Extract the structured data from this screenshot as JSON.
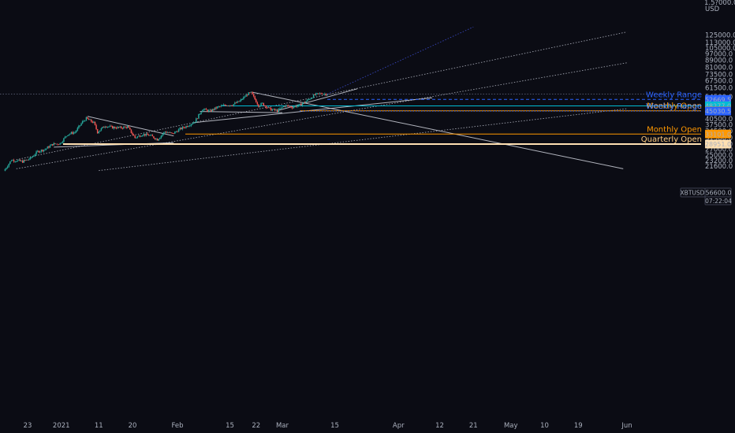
{
  "chart_data": {
    "type": "candlestick",
    "symbol": "XBTUSD",
    "currency": "USD",
    "last_price": "56600.0",
    "countdown": "07:22:04",
    "y_axis": {
      "scale": "log",
      "ylim": [
        20300,
        139000
      ],
      "ticks": [
        "125000.0",
        "113000.0",
        "105000.0",
        "97000.0",
        "89000.0",
        "81000.0",
        "73500.0",
        "67500.0",
        "61500.0",
        "54500.0",
        "40500.0",
        "37500.0",
        "34500.0",
        "31500.0",
        "29000.0",
        "27000.0",
        "25000.0",
        "23200.0",
        "21600.0"
      ],
      "top_label": "1.5?000.0"
    },
    "x_axis": {
      "ticks": [
        {
          "label": "23",
          "date": "2020-12-23"
        },
        {
          "label": "2021",
          "date": "2021-01-01"
        },
        {
          "label": "11",
          "date": "2021-01-11"
        },
        {
          "label": "20",
          "date": "2021-01-20"
        },
        {
          "label": "Feb",
          "date": "2021-02-01"
        },
        {
          "label": "15",
          "date": "2021-02-15"
        },
        {
          "label": "22",
          "date": "2021-02-22"
        },
        {
          "label": "Mar",
          "date": "2021-03-01"
        },
        {
          "label": "15",
          "date": "2021-03-15"
        },
        {
          "label": "Apr",
          "date": "2021-04-01"
        },
        {
          "label": "12",
          "date": "2021-04-12"
        },
        {
          "label": "21",
          "date": "2021-04-21"
        },
        {
          "label": "May",
          "date": "2021-05-01"
        },
        {
          "label": "10",
          "date": "2021-05-10"
        },
        {
          "label": "19",
          "date": "2021-05-19"
        },
        {
          "label": "Jun",
          "date": "2021-06-01"
        }
      ]
    },
    "price_series": [
      [
        "2020-12-17",
        20200
      ],
      [
        "2020-12-19",
        23400
      ],
      [
        "2020-12-22",
        22900
      ],
      [
        "2020-12-24",
        23800
      ],
      [
        "2020-12-26",
        26200
      ],
      [
        "2020-12-28",
        27000
      ],
      [
        "2020-12-30",
        28900
      ],
      [
        "2021-01-01",
        29200
      ],
      [
        "2021-01-03",
        33000
      ],
      [
        "2021-01-05",
        34000
      ],
      [
        "2021-01-07",
        39000
      ],
      [
        "2021-01-08",
        40800
      ],
      [
        "2021-01-10",
        38500
      ],
      [
        "2021-01-11",
        34000
      ],
      [
        "2021-01-13",
        37000
      ],
      [
        "2021-01-15",
        36200
      ],
      [
        "2021-01-17",
        36000
      ],
      [
        "2021-01-19",
        36500
      ],
      [
        "2021-01-21",
        31500
      ],
      [
        "2021-01-23",
        33000
      ],
      [
        "2021-01-25",
        32500
      ],
      [
        "2021-01-27",
        30800
      ],
      [
        "2021-01-29",
        34200
      ],
      [
        "2021-01-31",
        33200
      ],
      [
        "2021-02-02",
        35400
      ],
      [
        "2021-02-04",
        37000
      ],
      [
        "2021-02-06",
        39200
      ],
      [
        "2021-02-08",
        46200
      ],
      [
        "2021-02-10",
        45000
      ],
      [
        "2021-02-12",
        47400
      ],
      [
        "2021-02-14",
        48800
      ],
      [
        "2021-02-16",
        49000
      ],
      [
        "2021-02-18",
        51500
      ],
      [
        "2021-02-20",
        56500
      ],
      [
        "2021-02-21",
        57500
      ],
      [
        "2021-02-23",
        48500
      ],
      [
        "2021-02-24",
        49800
      ],
      [
        "2021-02-26",
        46200
      ],
      [
        "2021-02-28",
        45200
      ],
      [
        "2021-03-02",
        48500
      ],
      [
        "2021-03-04",
        47500
      ],
      [
        "2021-03-06",
        48800
      ],
      [
        "2021-03-08",
        52000
      ],
      [
        "2021-03-10",
        56000
      ],
      [
        "2021-03-12",
        57200
      ],
      [
        "2021-03-13",
        56600
      ]
    ],
    "horizontal_levels": [
      {
        "label": "Weekly Range",
        "price": 52669.5,
        "price_label": "52669.5",
        "style": "dashed",
        "color": "#2962ff",
        "label_color": "#2962ff"
      },
      {
        "label": "",
        "price": 48277.0,
        "price_label": "48277.0",
        "style": "solid",
        "color": "#00bcd4",
        "label_color": "#00bcd4"
      },
      {
        "label": "Monthly Open",
        "price": 45211.0,
        "price_label": "45211.0",
        "style": "solid",
        "color": "#ff9800",
        "label_color": "#ff9800"
      },
      {
        "label": "Weekly Range",
        "price": 45030.5,
        "price_label": "45030.5",
        "style": "dotted",
        "color": "#2962ff",
        "label_color": "#5b8cff"
      },
      {
        "label": "Monthly Open",
        "price": 33101.0,
        "price_label": "33101.0",
        "style": "solid",
        "color": "#ff9800",
        "label_color": "#ff9800"
      },
      {
        "label": "Quarterly Open",
        "price": 28951.0,
        "price_label": "28951.0",
        "style": "solid",
        "color": "#ffe0b2",
        "label_color": "#ffcc80"
      }
    ],
    "trendlines": [
      {
        "name": "upper-channel",
        "style": "dotted",
        "color": "#b8bcc8",
        "points": [
          [
            "2020-12-20",
            23500
          ],
          [
            "2021-06-01",
            130000
          ]
        ]
      },
      {
        "name": "middle-channel",
        "style": "dotted",
        "color": "#b8bcc8",
        "points": [
          [
            "2020-12-20",
            20800
          ],
          [
            "2021-06-01",
            86000
          ]
        ]
      },
      {
        "name": "lower-channel",
        "style": "dotted",
        "color": "#b8bcc8",
        "points": [
          [
            "2021-01-11",
            20300
          ],
          [
            "2021-06-01",
            46500
          ]
        ]
      },
      {
        "name": "steep-blue",
        "style": "dotted",
        "color": "#3d4fd6",
        "points": [
          [
            "2021-03-13",
            56600
          ],
          [
            "2021-04-21",
            139000
          ]
        ]
      },
      {
        "name": "january-downtrend",
        "style": "solid",
        "color": "#d0d3dc",
        "points": [
          [
            "2021-01-08",
            42000
          ],
          [
            "2021-01-31",
            32300
          ]
        ]
      },
      {
        "name": "january-base",
        "style": "solid",
        "color": "#d0d3dc",
        "points": [
          [
            "2020-12-30",
            27800
          ],
          [
            "2021-01-31",
            29500
          ]
        ]
      },
      {
        "name": "feb-uptrend",
        "style": "solid",
        "color": "#d0d3dc",
        "points": [
          [
            "2021-02-05",
            38500
          ],
          [
            "2021-04-10",
            53800
          ]
        ]
      },
      {
        "name": "march-breakout",
        "style": "solid",
        "color": "#d0d3dc",
        "points": [
          [
            "2021-02-28",
            45500
          ],
          [
            "2021-03-21",
            60700
          ]
        ]
      },
      {
        "name": "march-base",
        "style": "solid",
        "color": "#d0d3dc",
        "points": [
          [
            "2021-02-07",
            44800
          ],
          [
            "2021-03-01",
            44100
          ]
        ]
      },
      {
        "name": "long-downtrend",
        "style": "solid",
        "color": "#d0d3dc",
        "points": [
          [
            "2021-02-21",
            58000
          ],
          [
            "2021-05-31",
            20800
          ]
        ]
      }
    ]
  },
  "colors": {
    "background": "#0b0c14",
    "up_candle": "#26a69a",
    "down_candle": "#ef5350",
    "axis_text": "#aab0bd",
    "last_price_line": "#5a5f73"
  },
  "icons": {}
}
